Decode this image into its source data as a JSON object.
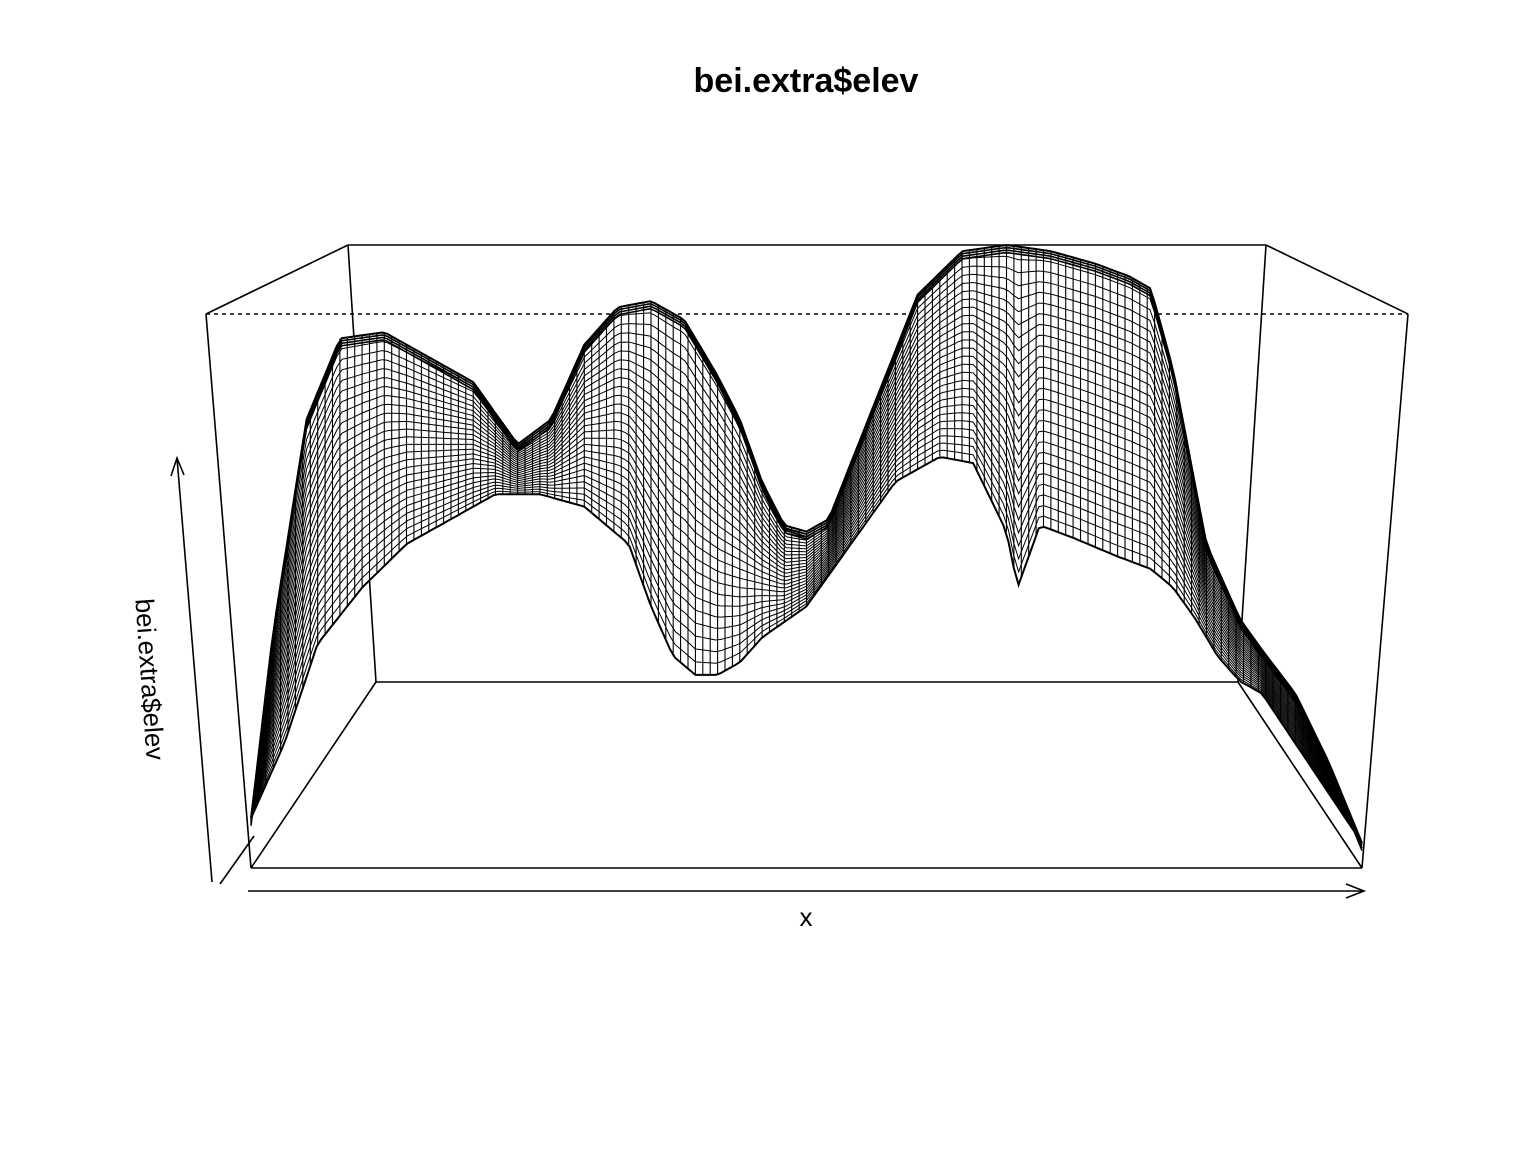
{
  "chart_data": {
    "type": "surface",
    "title": "bei.extra$elev",
    "xlabel": "x",
    "zlabel": "bei.extra$elev",
    "box": true,
    "grid": false,
    "colors": {
      "line": "#000000",
      "background": "#ffffff"
    },
    "front_ridge": [
      [
        0.0,
        0.08
      ],
      [
        0.02,
        0.38
      ],
      [
        0.05,
        0.72
      ],
      [
        0.08,
        0.85
      ],
      [
        0.12,
        0.86
      ],
      [
        0.16,
        0.82
      ],
      [
        0.2,
        0.78
      ],
      [
        0.24,
        0.68
      ],
      [
        0.27,
        0.72
      ],
      [
        0.3,
        0.84
      ],
      [
        0.33,
        0.9
      ],
      [
        0.36,
        0.91
      ],
      [
        0.39,
        0.88
      ],
      [
        0.42,
        0.79
      ],
      [
        0.44,
        0.72
      ],
      [
        0.46,
        0.62
      ],
      [
        0.48,
        0.55
      ],
      [
        0.5,
        0.54
      ],
      [
        0.52,
        0.56
      ],
      [
        0.56,
        0.74
      ],
      [
        0.6,
        0.92
      ],
      [
        0.64,
        0.99
      ],
      [
        0.68,
        1.0
      ],
      [
        0.72,
        0.99
      ],
      [
        0.76,
        0.97
      ],
      [
        0.79,
        0.95
      ],
      [
        0.81,
        0.93
      ],
      [
        0.83,
        0.8
      ],
      [
        0.86,
        0.52
      ],
      [
        0.89,
        0.4
      ],
      [
        0.91,
        0.35
      ],
      [
        0.94,
        0.28
      ],
      [
        0.97,
        0.17
      ],
      [
        1.0,
        0.04
      ]
    ],
    "front_edge": [
      [
        0.0,
        0.08
      ],
      [
        0.03,
        0.2
      ],
      [
        0.06,
        0.36
      ],
      [
        0.1,
        0.45
      ],
      [
        0.14,
        0.52
      ],
      [
        0.18,
        0.56
      ],
      [
        0.22,
        0.6
      ],
      [
        0.26,
        0.6
      ],
      [
        0.3,
        0.58
      ],
      [
        0.34,
        0.52
      ],
      [
        0.36,
        0.42
      ],
      [
        0.38,
        0.34
      ],
      [
        0.4,
        0.31
      ],
      [
        0.42,
        0.31
      ],
      [
        0.44,
        0.33
      ],
      [
        0.46,
        0.37
      ],
      [
        0.5,
        0.42
      ],
      [
        0.54,
        0.52
      ],
      [
        0.58,
        0.62
      ],
      [
        0.62,
        0.66
      ],
      [
        0.65,
        0.65
      ],
      [
        0.68,
        0.54
      ],
      [
        0.69,
        0.45
      ],
      [
        0.71,
        0.55
      ],
      [
        0.74,
        0.53
      ],
      [
        0.78,
        0.5
      ],
      [
        0.81,
        0.48
      ],
      [
        0.83,
        0.45
      ],
      [
        0.85,
        0.4
      ],
      [
        0.87,
        0.34
      ],
      [
        0.89,
        0.3
      ],
      [
        0.91,
        0.28
      ],
      [
        0.94,
        0.2
      ],
      [
        0.97,
        0.12
      ],
      [
        1.0,
        0.04
      ]
    ]
  }
}
